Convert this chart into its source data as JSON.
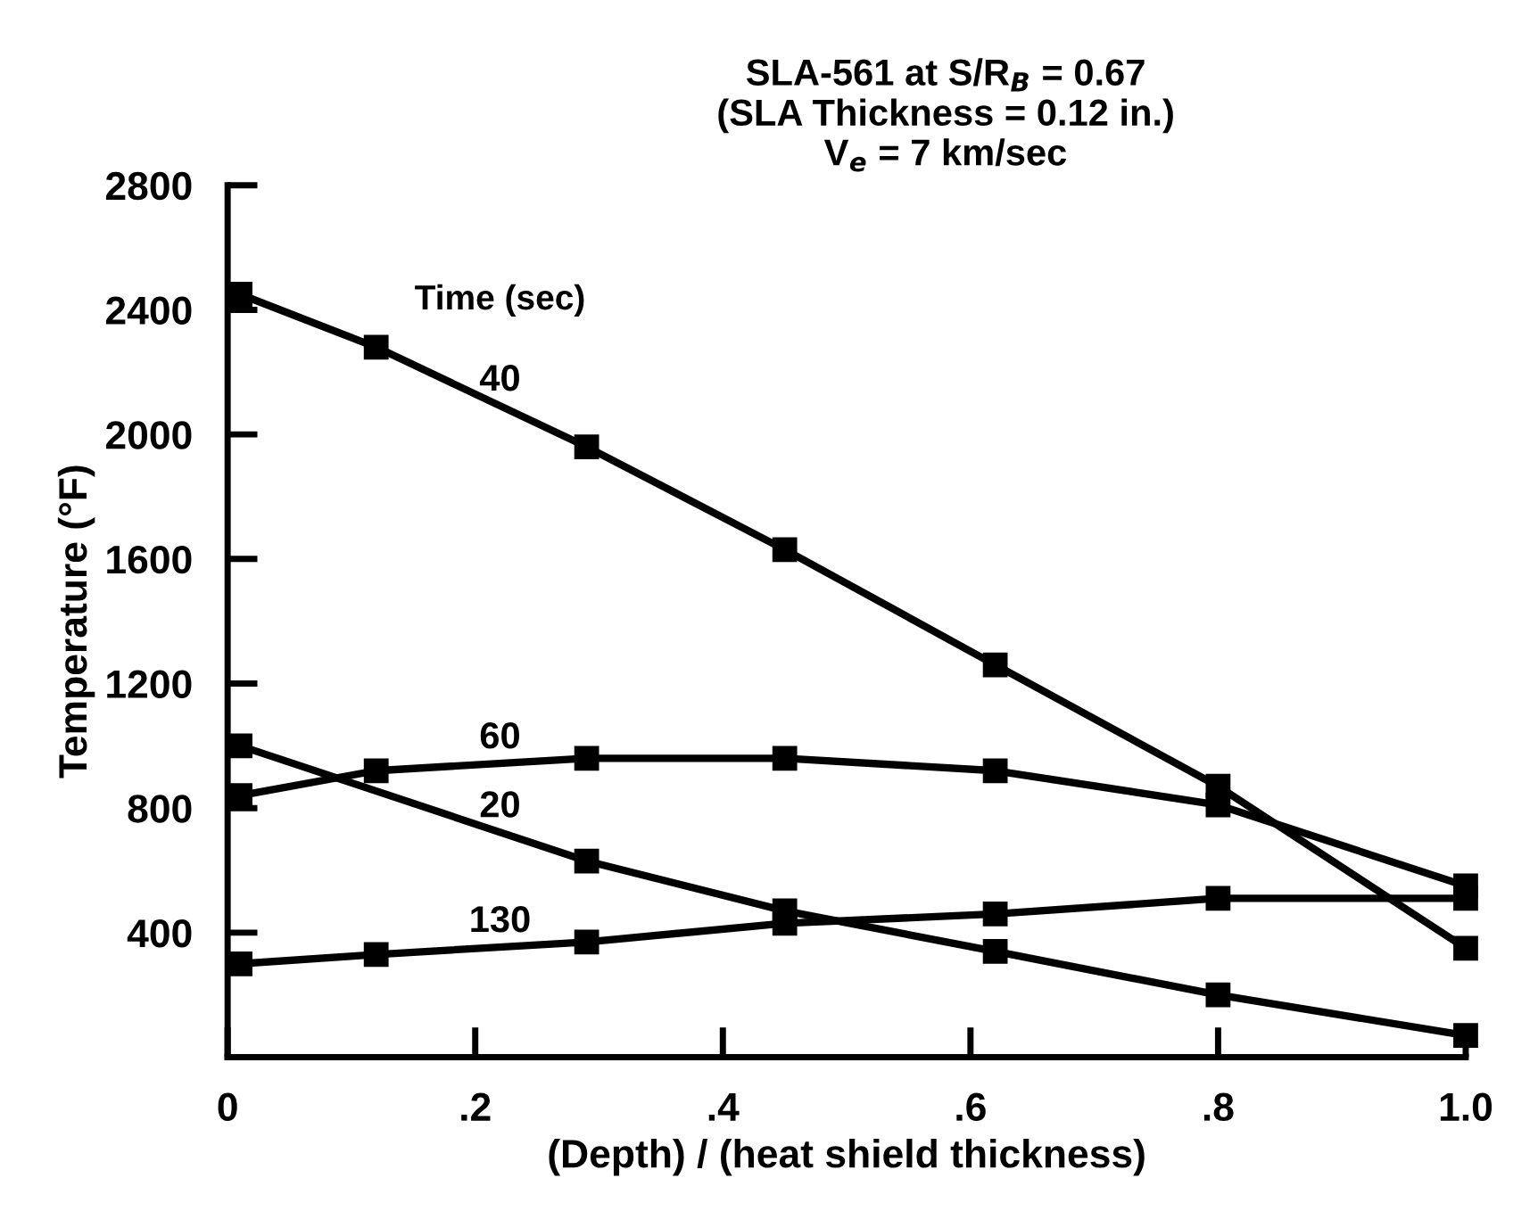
{
  "chart_data": {
    "type": "line",
    "title": "SLA-561 at S/R$_{B}$ = 0.67\n(SLA Thickness = 0.12 in.)\nV$_{e}$ = 7 km/sec",
    "xlabel": "(Depth) / (heat shield thickness)",
    "ylabel": "Temperature (°F)",
    "legend_title": "Time (sec)",
    "series": [
      {
        "name": "40",
        "color": "#000000",
        "x": [
          0.01,
          0.12,
          0.29,
          0.45,
          0.62,
          0.8,
          1.0
        ],
        "values": [
          2450,
          2280,
          1960,
          1630,
          1260,
          870,
          350
        ]
      },
      {
        "name": "60",
        "color": "#000000",
        "x": [
          0.01,
          0.12,
          0.29,
          0.45,
          0.62,
          0.8,
          1.0
        ],
        "values": [
          840,
          920,
          960,
          960,
          920,
          810,
          550
        ]
      },
      {
        "name": "20",
        "color": "#000000",
        "x": [
          0.01,
          0.29,
          0.45,
          0.62,
          0.8,
          1.0
        ],
        "values": [
          1000,
          630,
          470,
          340,
          200,
          70
        ]
      },
      {
        "name": "130",
        "color": "#000000",
        "x": [
          0.01,
          0.12,
          0.29,
          0.45,
          0.62,
          0.8,
          1.0
        ],
        "values": [
          300,
          330,
          370,
          430,
          460,
          510,
          510
        ]
      }
    ],
    "xlim": [
      0,
      1.0
    ],
    "ylim": [
      0,
      2800
    ],
    "xticks": [
      0,
      {
        "value": 0.2,
        "label": ".2"
      },
      {
        "value": 0.4,
        "label": ".4"
      },
      {
        "value": 0.6,
        "label": ".6"
      },
      {
        "value": 0.8,
        "label": ".8"
      },
      {
        "value": 1.0,
        "label": "1.0"
      }
    ],
    "yticks": [
      400,
      800,
      1200,
      1600,
      2000,
      2400,
      2800
    ],
    "marker": "square",
    "line_style": "solid",
    "grid": false
  }
}
